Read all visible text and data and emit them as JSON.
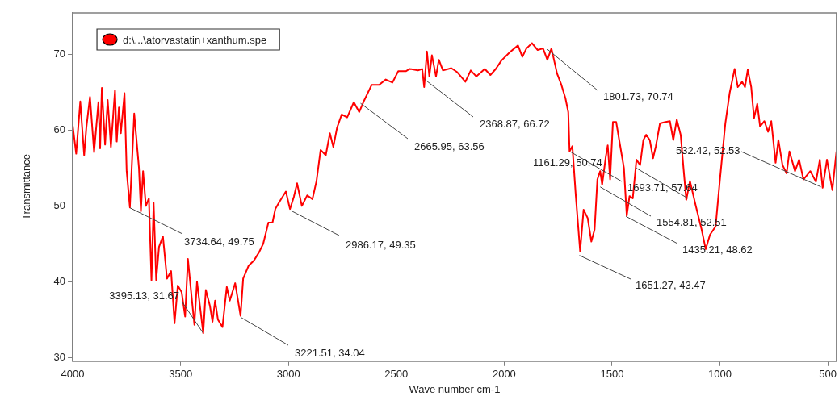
{
  "chart_data": {
    "type": "line",
    "xlabel": "Wave number cm-1",
    "ylabel": "Transmittance",
    "xlim": [
      4000,
      460
    ],
    "ylim": [
      29.5,
      75.5
    ],
    "xticks": [
      4000,
      3500,
      3000,
      2500,
      2000,
      1500,
      1000,
      500
    ],
    "yticks": [
      30,
      40,
      50,
      60,
      70
    ],
    "grid": false,
    "legend": "top left",
    "marker": "none",
    "line_style": "solid",
    "series": [
      {
        "name": "d:\\...\\atorvastatin+xanthum.spe",
        "color": "#ff0000",
        "x": [
          4000,
          3984,
          3965,
          3947,
          3937,
          3920,
          3901,
          3881,
          3873,
          3865,
          3850,
          3838,
          3823,
          3804,
          3796,
          3786,
          3777,
          3760,
          3750,
          3735,
          3715,
          3693,
          3684,
          3674,
          3661,
          3647,
          3635,
          3625,
          3613,
          3600,
          3582,
          3563,
          3544,
          3528,
          3513,
          3495,
          3479,
          3466,
          3451,
          3436,
          3424,
          3395,
          3383,
          3364,
          3352,
          3340,
          3327,
          3306,
          3286,
          3272,
          3247,
          3222,
          3210,
          3185,
          3160,
          3136,
          3117,
          3093,
          3074,
          3061,
          3043,
          3012,
          2993,
          2975,
          2960,
          2938,
          2913,
          2889,
          2870,
          2851,
          2827,
          2808,
          2792,
          2775,
          2753,
          2728,
          2697,
          2672,
          2648,
          2614,
          2580,
          2549,
          2518,
          2491,
          2456,
          2438,
          2400,
          2380,
          2371,
          2358,
          2347,
          2335,
          2316,
          2303,
          2284,
          2245,
          2219,
          2180,
          2155,
          2129,
          2090,
          2064,
          2039,
          2013,
          1974,
          1936,
          1916,
          1897,
          1871,
          1845,
          1820,
          1800,
          1781,
          1755,
          1735,
          1716,
          1703,
          1697,
          1684,
          1668,
          1648,
          1632,
          1613,
          1596,
          1581,
          1568,
          1555,
          1546,
          1529,
          1520,
          1509,
          1496,
          1481,
          1458,
          1445,
          1432,
          1419,
          1404,
          1387,
          1370,
          1355,
          1342,
          1325,
          1310,
          1297,
          1278,
          1252,
          1232,
          1216,
          1200,
          1182,
          1169,
          1156,
          1139,
          1111,
          1085,
          1066,
          1046,
          1020,
          1001,
          975,
          955,
          932,
          917,
          897,
          884,
          871,
          855,
          842,
          827,
          814,
          794,
          777,
          762,
          742,
          729,
          710,
          691,
          678,
          652,
          633,
          613,
          581,
          555,
          537,
          524,
          504,
          479,
          460
        ],
        "values": [
          60.6,
          56.9,
          63.8,
          56.7,
          60.3,
          64.4,
          57.1,
          63.7,
          57.6,
          65.6,
          58.1,
          64.0,
          57.8,
          65.3,
          58.5,
          63.0,
          59.6,
          64.9,
          54.6,
          49.8,
          62.2,
          55.0,
          49.3,
          54.6,
          50.0,
          51.0,
          40.2,
          50.4,
          40.2,
          44.6,
          46.0,
          40.4,
          41.4,
          34.5,
          39.5,
          38.6,
          35.4,
          43.0,
          38.6,
          34.3,
          40.0,
          33.2,
          38.9,
          36.8,
          34.7,
          37.5,
          35.0,
          34.0,
          39.3,
          37.5,
          39.8,
          35.5,
          40.4,
          42.1,
          42.8,
          43.9,
          45.0,
          47.8,
          47.8,
          49.6,
          50.5,
          51.9,
          49.6,
          51.2,
          53.0,
          50.0,
          51.4,
          50.9,
          53.3,
          57.4,
          56.7,
          59.6,
          57.8,
          60.3,
          62.1,
          61.7,
          63.7,
          62.4,
          64.0,
          66.0,
          66.0,
          66.7,
          66.3,
          67.8,
          67.8,
          68.1,
          67.9,
          68.1,
          65.7,
          70.4,
          67.1,
          69.9,
          67.1,
          69.3,
          67.9,
          68.2,
          67.7,
          66.4,
          67.9,
          67.1,
          68.1,
          67.3,
          68.1,
          69.2,
          70.3,
          71.2,
          69.7,
          70.8,
          71.5,
          70.6,
          70.8,
          69.3,
          70.8,
          67.5,
          66.0,
          64.2,
          62.4,
          57.2,
          57.9,
          51.3,
          44.0,
          49.5,
          48.4,
          45.3,
          46.9,
          53.5,
          54.6,
          52.8,
          56.5,
          58.0,
          53.5,
          61.1,
          61.1,
          57.2,
          55.0,
          48.7,
          51.3,
          51.0,
          56.1,
          55.4,
          58.7,
          59.4,
          58.7,
          56.3,
          57.9,
          60.9,
          61.1,
          61.2,
          58.7,
          61.4,
          59.4,
          55.0,
          50.8,
          53.3,
          49.9,
          46.9,
          44.3,
          46.2,
          47.3,
          53.2,
          60.9,
          64.9,
          68.1,
          65.7,
          66.4,
          65.7,
          68.0,
          65.7,
          61.6,
          63.5,
          60.5,
          61.2,
          59.8,
          61.2,
          55.7,
          58.7,
          55.4,
          54.3,
          57.2,
          54.6,
          56.1,
          53.5,
          54.6,
          53.2,
          56.1,
          52.4,
          56.1,
          52.1,
          57.2
        ]
      }
    ],
    "annotations": [
      {
        "text": "3734.64, 49.75",
        "x": 3734.64,
        "y": 49.75
      },
      {
        "text": "3395.13, 31.67",
        "x": 3395.13,
        "y": 33.2
      },
      {
        "text": "3221.51, 34.04",
        "x": 3221.51,
        "y": 35.3
      },
      {
        "text": "2986.17, 49.35",
        "x": 2986.17,
        "y": 49.35
      },
      {
        "text": "2665.95, 63.56",
        "x": 2665.95,
        "y": 63.56
      },
      {
        "text": "2368.87, 66.72",
        "x": 2368.87,
        "y": 66.72
      },
      {
        "text": "1801.73, 70.74",
        "x": 1801.73,
        "y": 70.74
      },
      {
        "text": "1161.29, 50.74",
        "x": 1690,
        "y": 57.1
      },
      {
        "text": "1693.71, 57.64",
        "x": 1388,
        "y": 55.0
      },
      {
        "text": "1554.81, 52.51",
        "x": 1554.81,
        "y": 52.51
      },
      {
        "text": "1435.21, 48.62",
        "x": 1435.21,
        "y": 48.62
      },
      {
        "text": "1651.27, 43.47",
        "x": 1651.27,
        "y": 43.47
      },
      {
        "text": "532.42, 52.53",
        "x": 532.42,
        "y": 52.53
      }
    ]
  }
}
